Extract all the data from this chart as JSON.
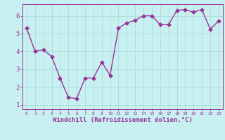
{
  "x": [
    0,
    1,
    2,
    3,
    4,
    5,
    6,
    7,
    8,
    9,
    10,
    11,
    12,
    13,
    14,
    15,
    16,
    17,
    18,
    19,
    20,
    21,
    22,
    23
  ],
  "y": [
    5.3,
    4.0,
    4.1,
    3.7,
    2.5,
    1.4,
    1.35,
    2.5,
    2.5,
    3.4,
    2.65,
    5.3,
    5.6,
    5.75,
    6.0,
    6.0,
    5.5,
    5.5,
    6.3,
    6.35,
    6.2,
    6.35,
    5.25,
    5.7
  ],
  "line_color": "#993399",
  "marker": "D",
  "markersize": 2.5,
  "linewidth": 1.0,
  "xlabel": "Windchill (Refroidissement éolien,°C)",
  "xlabel_fontsize": 6.5,
  "ylim": [
    0.75,
    6.65
  ],
  "xlim": [
    -0.5,
    23.5
  ],
  "yticks": [
    1,
    2,
    3,
    4,
    5,
    6
  ],
  "xticks": [
    0,
    1,
    2,
    3,
    4,
    5,
    6,
    7,
    8,
    9,
    10,
    11,
    12,
    13,
    14,
    15,
    16,
    17,
    18,
    19,
    20,
    21,
    22,
    23
  ],
  "bg_color": "#c8f0f0",
  "grid_color": "#aadddd",
  "tick_color": "#993399",
  "label_color": "#993399",
  "spine_color": "#993399"
}
